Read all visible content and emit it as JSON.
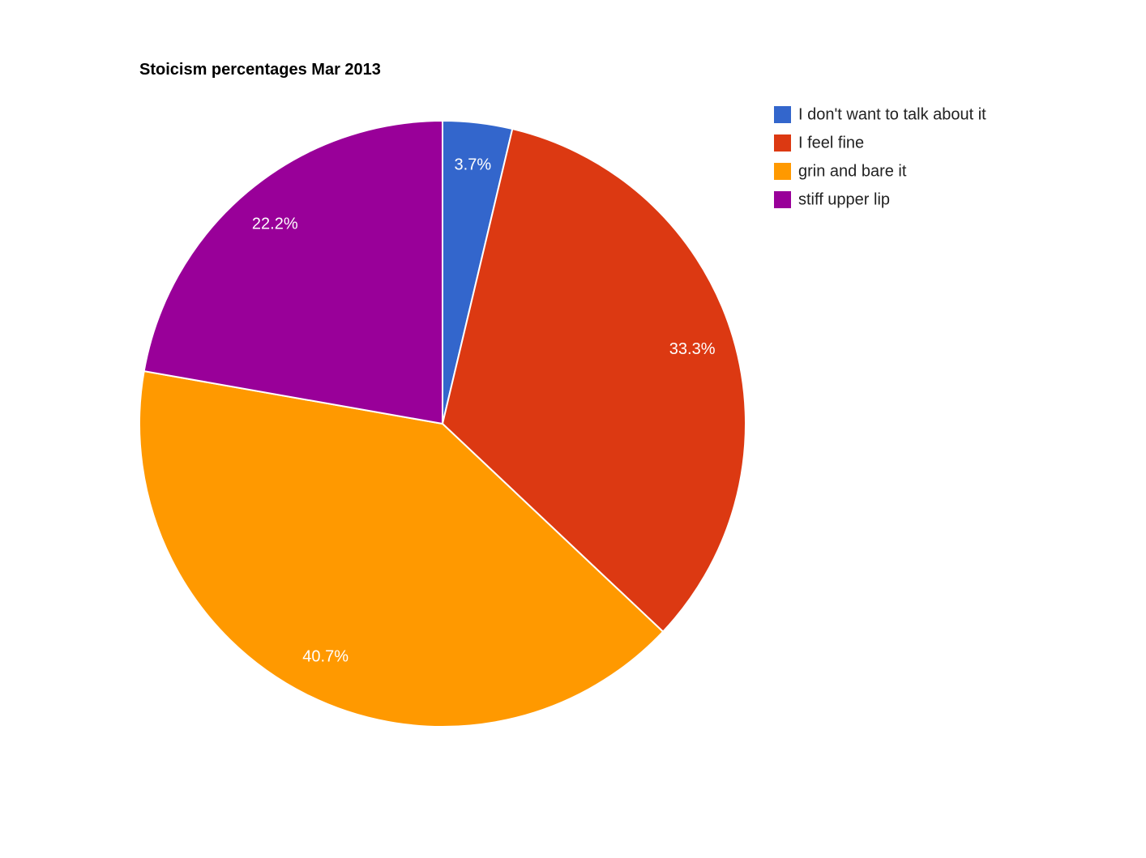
{
  "chart_data": {
    "type": "pie",
    "title": "Stoicism percentages Mar 2013",
    "slices": [
      {
        "label": "I don't want to talk about it",
        "value": 3.7,
        "value_label": "3.7%",
        "color": "#3366cc"
      },
      {
        "label": "I feel fine",
        "value": 33.3,
        "value_label": "33.3%",
        "color": "#dc3912"
      },
      {
        "label": "grin and bare it",
        "value": 40.7,
        "value_label": "40.7%",
        "color": "#ff9900"
      },
      {
        "label": "stiff upper lip",
        "value": 22.2,
        "value_label": "22.2%",
        "color": "#990099"
      }
    ],
    "legend_position": "right",
    "start": "top",
    "direction": "clockwise"
  }
}
